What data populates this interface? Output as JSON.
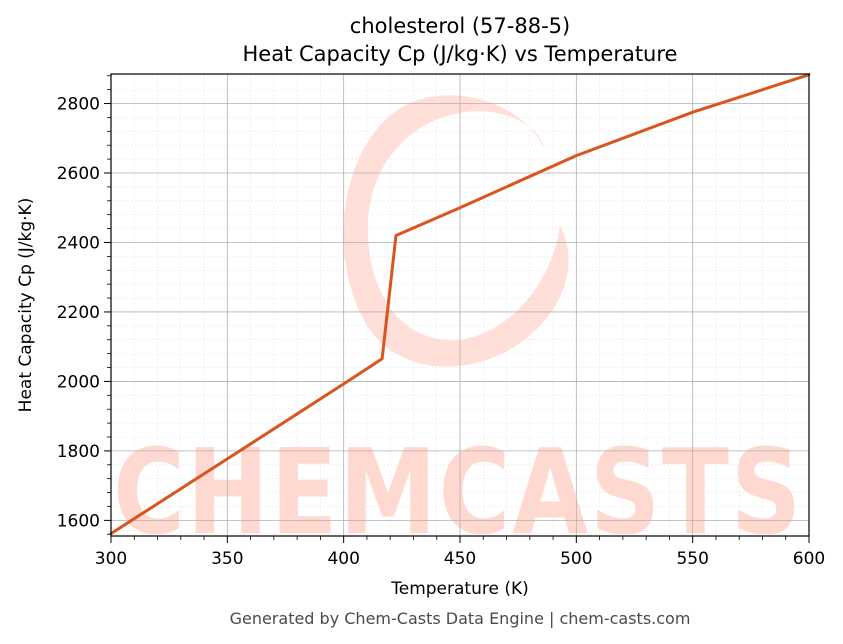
{
  "chart_data": {
    "type": "line",
    "title": "cholesterol (57-88-5)",
    "subtitle": "Heat Capacity Cp (J/kg·K) vs Temperature",
    "xlabel": "Temperature (K)",
    "ylabel": "Heat Capacity Cp (J/kg·K)",
    "xlim": [
      300,
      600
    ],
    "ylim": [
      1555,
      2885
    ],
    "xticks": [
      300,
      350,
      400,
      450,
      500,
      550,
      600
    ],
    "yticks": [
      1600,
      1800,
      2000,
      2200,
      2400,
      2600,
      2800
    ],
    "grid": true,
    "series": [
      {
        "color": "#d9541e",
        "x": [
          300,
          350,
          400,
          416.5,
          422.5,
          450,
          500,
          550,
          600
        ],
        "y": [
          1562,
          1777,
          1993,
          2065,
          2420,
          2500,
          2650,
          2775,
          2883
        ]
      }
    ]
  },
  "watermark": {
    "text": "CHEMCASTS",
    "color": "#ffd9d0"
  },
  "footer": "Generated by Chem-Casts Data Engine | chem-casts.com"
}
